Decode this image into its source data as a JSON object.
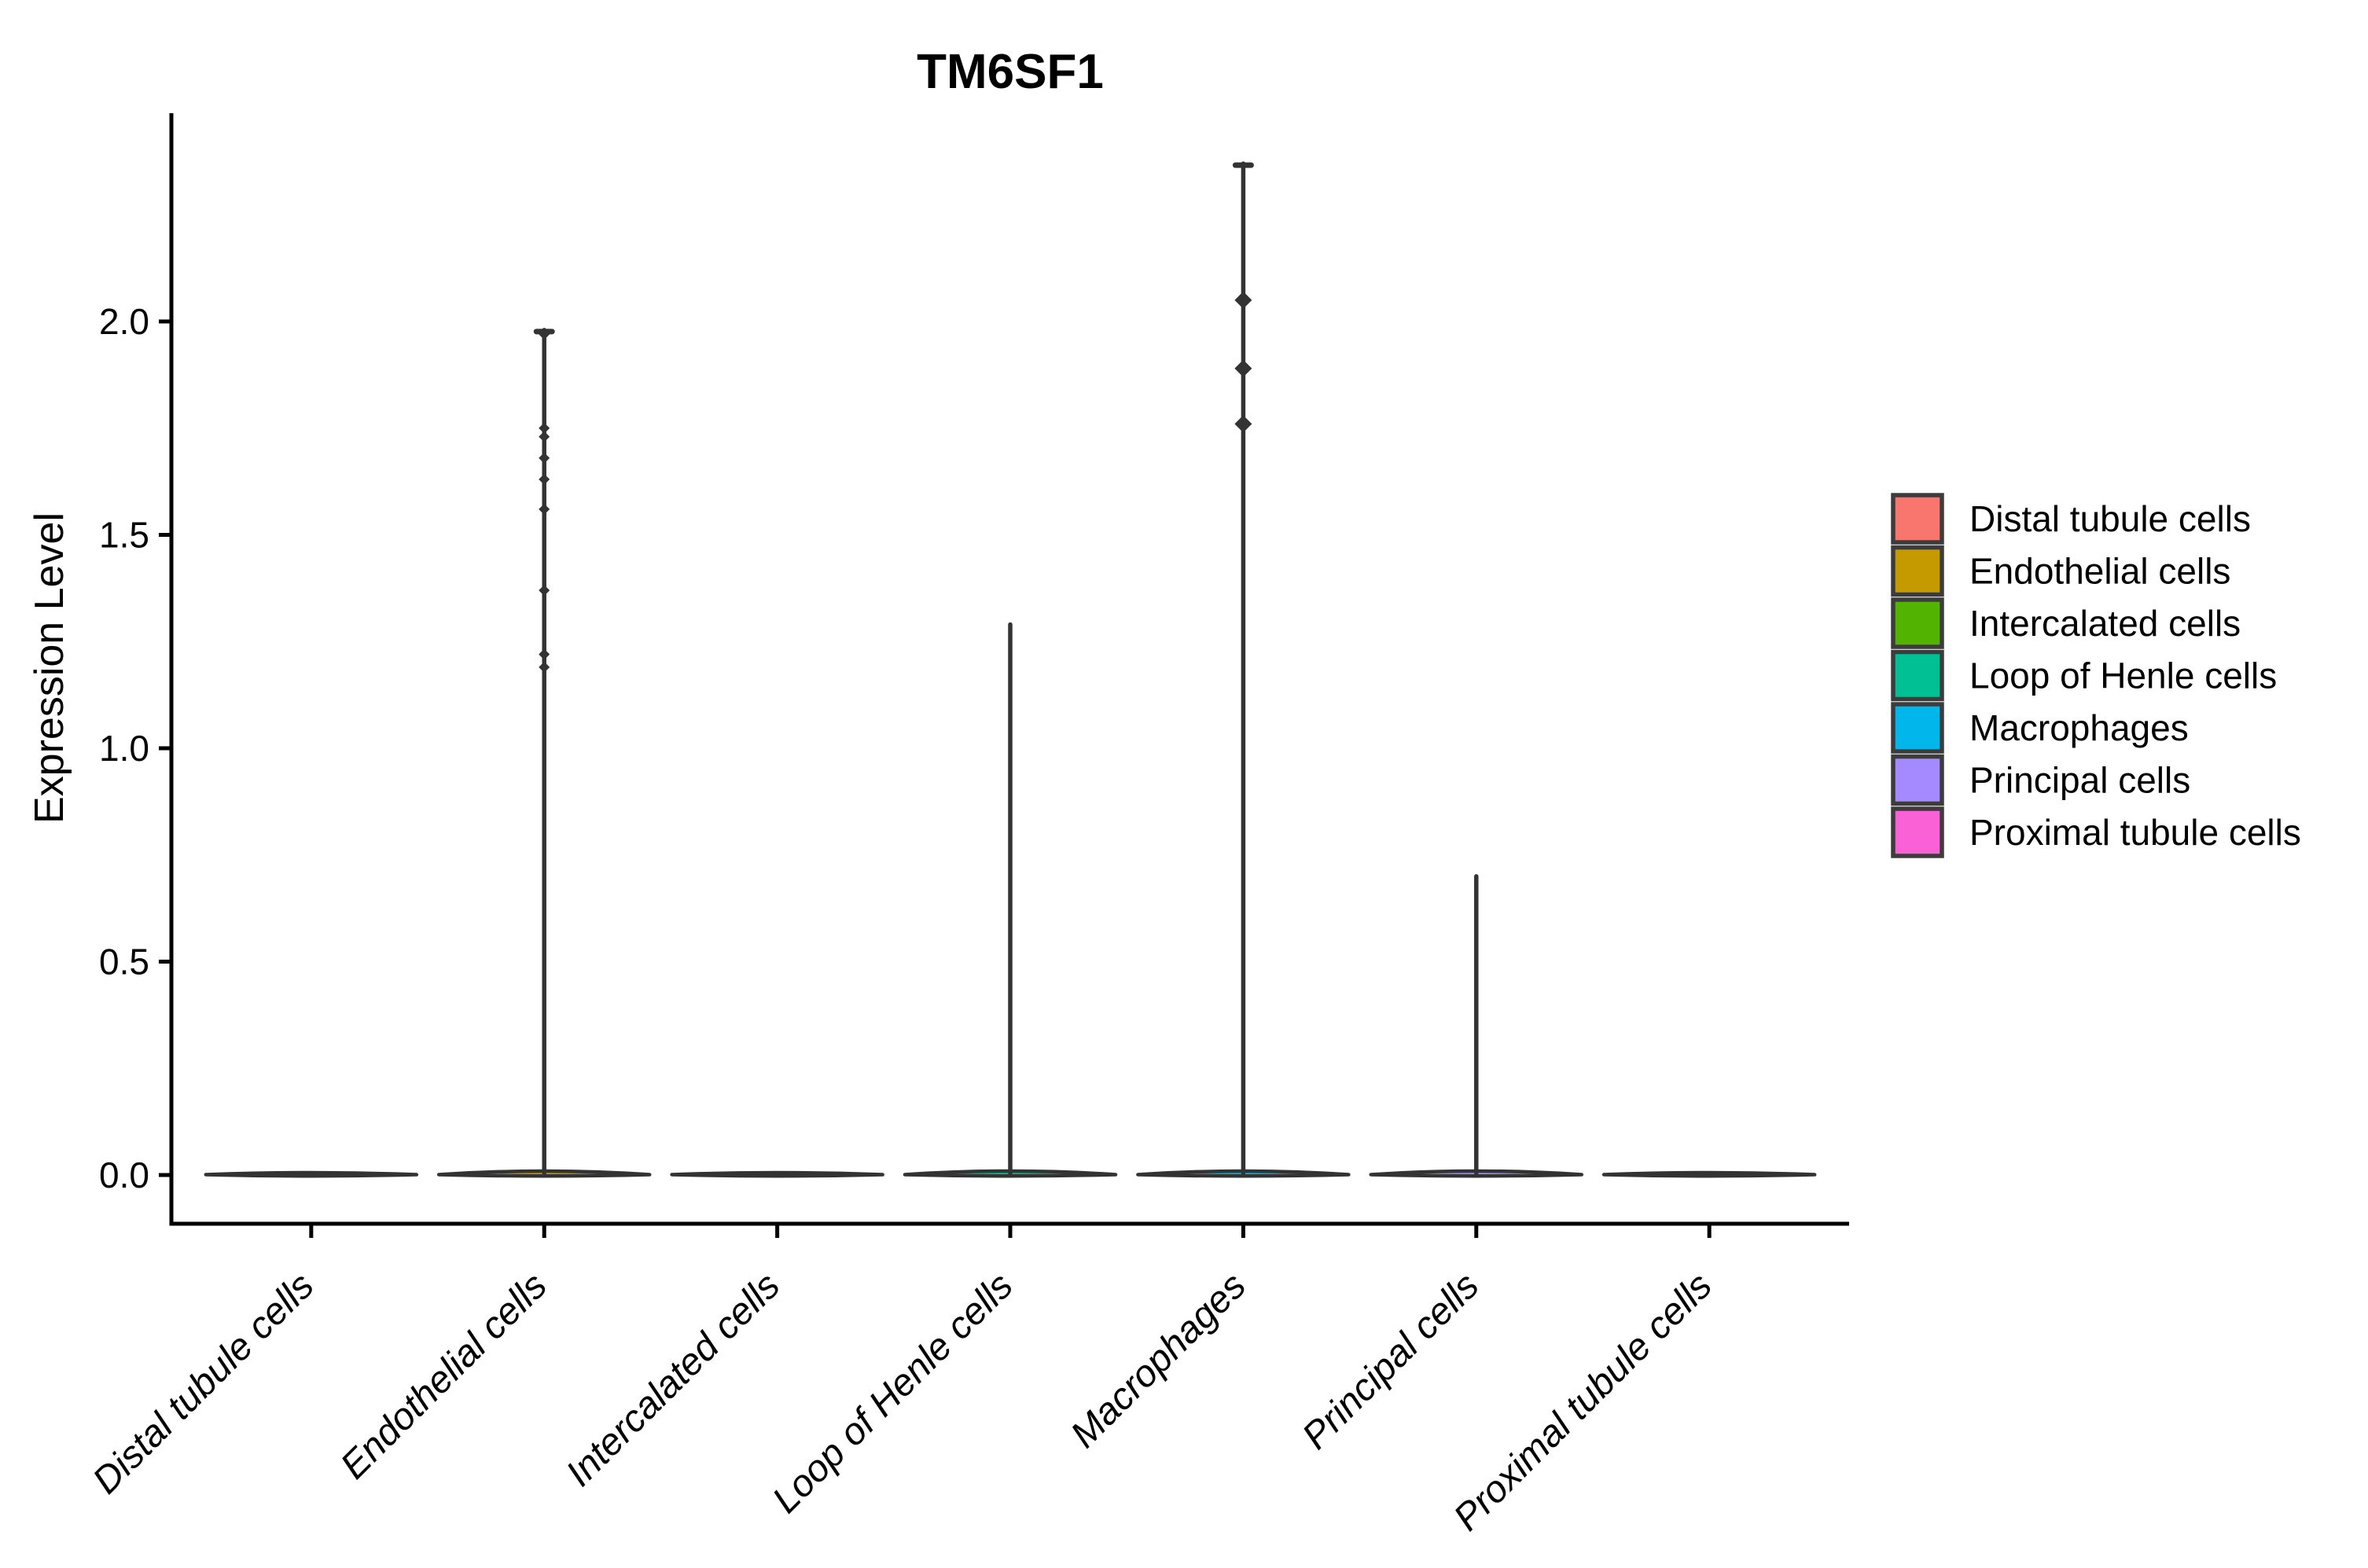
{
  "figure": {
    "title": "TM6SF1"
  },
  "chart_data": {
    "type": "violin",
    "title": "TM6SF1",
    "xlabel": "",
    "ylabel": "Expression Level",
    "ylim": [
      -0.12,
      2.49
    ],
    "yticks": [
      0.0,
      0.5,
      1.0,
      1.5,
      2.0
    ],
    "ytick_labels": [
      "0.0",
      "0.5",
      "1.0",
      "1.5",
      "2.0"
    ],
    "grid": false,
    "x_label_angle": 45,
    "x_label_style": "italic",
    "categories": [
      "Distal tubule cells",
      "Endothelial cells",
      "Intercalated cells",
      "Loop of Henle cells",
      "Macrophages",
      "Principal cells",
      "Proximal tubule cells"
    ],
    "series": [
      {
        "name": "Distal tubule cells",
        "color": "#F8766D",
        "base_value": 0.0,
        "spike_top": 0.0,
        "cap": false,
        "outliers": []
      },
      {
        "name": "Endothelial cells",
        "color": "#C49A00",
        "base_value": 0.0,
        "spike_top": 1.98,
        "cap": true,
        "outliers": [
          1.97,
          1.75,
          1.73,
          1.68,
          1.63,
          1.56,
          1.37,
          1.22,
          1.19
        ]
      },
      {
        "name": "Intercalated cells",
        "color": "#53B400",
        "base_value": 0.0,
        "spike_top": 0.0,
        "cap": false,
        "outliers": []
      },
      {
        "name": "Loop of Henle cells",
        "color": "#00C094",
        "base_value": 0.0,
        "spike_top": 1.29,
        "cap": false,
        "outliers": []
      },
      {
        "name": "Macrophages",
        "color": "#00B6EB",
        "base_value": 0.0,
        "spike_top": 2.37,
        "cap": true,
        "outliers": [
          2.05,
          1.89,
          1.76
        ]
      },
      {
        "name": "Principal cells",
        "color": "#A58AFF",
        "base_value": 0.0,
        "spike_top": 0.7,
        "cap": false,
        "outliers": []
      },
      {
        "name": "Proximal tubule cells",
        "color": "#FB61D7",
        "base_value": 0.0,
        "spike_top": 0.0,
        "cap": false,
        "outliers": []
      }
    ],
    "legend": {
      "position": "right",
      "entries": [
        {
          "label": "Distal tubule cells",
          "color": "#F8766D"
        },
        {
          "label": "Endothelial cells",
          "color": "#C49A00"
        },
        {
          "label": "Intercalated cells",
          "color": "#53B400"
        },
        {
          "label": "Loop of Henle cells",
          "color": "#00C094"
        },
        {
          "label": "Macrophages",
          "color": "#00B6EB"
        },
        {
          "label": "Principal cells",
          "color": "#A58AFF"
        },
        {
          "label": "Proximal tubule cells",
          "color": "#FB61D7"
        }
      ]
    },
    "style_colors": {
      "violin_outline": "#333333",
      "axis": "#000000",
      "legend_swatch_border": "#3C3C3C"
    }
  }
}
